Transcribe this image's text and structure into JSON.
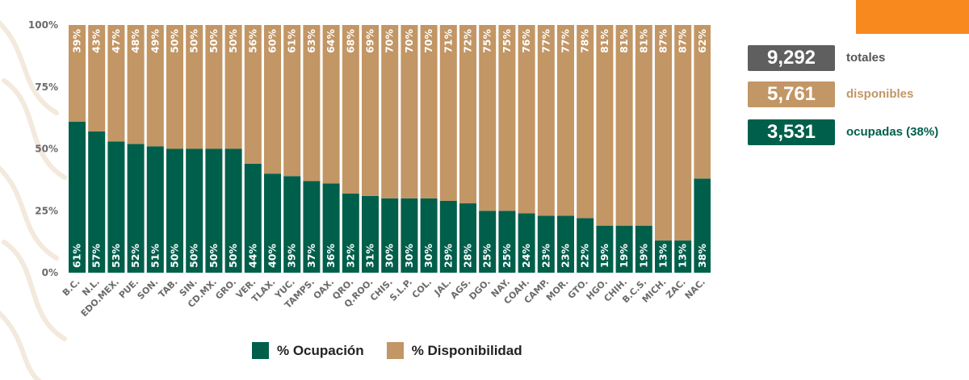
{
  "colors": {
    "ocupacion": "#005f4b",
    "disponibilidad": "#c29665",
    "totales": "#5f5f5f",
    "accent": "#f7891f"
  },
  "stats": {
    "totales": {
      "value": "9,292",
      "label": "totales"
    },
    "disponibles": {
      "value": "5,761",
      "label": "disponibles"
    },
    "ocupadas": {
      "value": "3,531",
      "label": "ocupadas (38%)"
    }
  },
  "legend": {
    "ocupacion": "% Ocupación",
    "disponibilidad": "% Disponibilidad"
  },
  "chart_data": {
    "type": "bar",
    "stacked": true,
    "ylim": [
      0,
      100
    ],
    "yticks": [
      "0%",
      "25%",
      "50%",
      "75%",
      "100%"
    ],
    "categories": [
      "B.C.",
      "N.L.",
      "EDO.MEX.",
      "PUE.",
      "SON.",
      "TAB.",
      "SIN.",
      "CD.MX.",
      "GRO.",
      "VER.",
      "TLAX.",
      "YUC.",
      "TAMPS.",
      "OAX.",
      "QRO.",
      "Q.ROO.",
      "CHIS.",
      "S.L.P.",
      "COL.",
      "JAL.",
      "AGS.",
      "DGO.",
      "NAY.",
      "COAH.",
      "CAMP.",
      "MOR.",
      "GTO.",
      "HGO.",
      "CHIH.",
      "B.C.S.",
      "MICH.",
      "ZAC.",
      "NAC."
    ],
    "series": [
      {
        "name": "% Ocupación",
        "values": [
          61,
          57,
          53,
          52,
          51,
          50,
          50,
          50,
          50,
          44,
          40,
          39,
          37,
          36,
          32,
          31,
          30,
          30,
          30,
          29,
          28,
          25,
          25,
          24,
          23,
          23,
          22,
          19,
          19,
          19,
          13,
          13,
          38
        ],
        "labels": [
          "61%",
          "57%",
          "53%",
          "52%",
          "51%",
          "50%",
          "50%",
          "50%",
          "50%",
          "44%",
          "40%",
          "39%",
          "37%",
          "36%",
          "32%",
          "31%",
          "30%",
          "30%",
          "30%",
          "29%",
          "28%",
          "25%",
          "25%",
          "24%",
          "23%",
          "23%",
          "22%",
          "19%",
          "19%",
          "19%",
          "13%",
          "13%",
          "38%"
        ]
      },
      {
        "name": "% Disponibilidad",
        "values": [
          39,
          43,
          47,
          48,
          49,
          50,
          50,
          50,
          50,
          56,
          60,
          61,
          63,
          64,
          68,
          69,
          70,
          70,
          70,
          71,
          72,
          75,
          75,
          76,
          77,
          77,
          78,
          81,
          81,
          81,
          87,
          87,
          62
        ],
        "labels": [
          "39%",
          "43%",
          "47%",
          "48%",
          "49%",
          "50%",
          "50%",
          "50%",
          "50%",
          "56%",
          "60%",
          "61%",
          "63%",
          "64%",
          "68%",
          "69%",
          "70%",
          "70%",
          "70%",
          "71%",
          "72%",
          "75%",
          "75%",
          "76%",
          "77%",
          "77%",
          "78%",
          "81%",
          "81%",
          "81%",
          "87%",
          "87%",
          "62%"
        ]
      }
    ]
  }
}
